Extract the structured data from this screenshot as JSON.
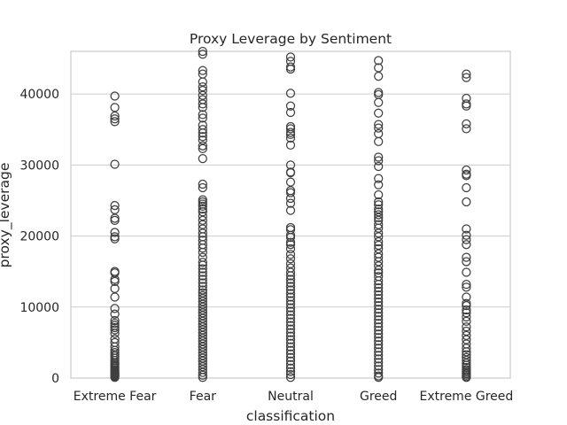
{
  "chart_data": {
    "type": "scatter",
    "subtype": "boxplot-outliers",
    "title": "Proxy Leverage by Sentiment",
    "xlabel": "classification",
    "ylabel": "proxy_leverage",
    "categories": [
      "Extreme Fear",
      "Fear",
      "Neutral",
      "Greed",
      "Extreme Greed"
    ],
    "ylim": [
      0,
      46000
    ],
    "yticks": [
      0,
      10000,
      20000,
      30000,
      40000
    ],
    "ytick_labels": [
      "0",
      "10000",
      "20000",
      "30000",
      "40000"
    ],
    "grid": "horizontal",
    "style": {
      "background": "#ffffff",
      "grid_color": "#cccccc",
      "marker_edge": "#3f3f3f",
      "spine_color": "#cccccc"
    },
    "series": [
      {
        "category": "Extreme Fear",
        "values": [
          39700,
          38100,
          36900,
          36500,
          36100,
          30100,
          24300,
          23700,
          22500,
          22200,
          20500,
          19900,
          19600,
          15000,
          14800,
          13900,
          13600,
          12600,
          11400,
          9800,
          9000,
          8100,
          7700,
          7400,
          7100,
          6800,
          6300,
          5500,
          5000,
          4400,
          3900,
          3600,
          3300,
          3100,
          2800,
          2500,
          2200,
          2000,
          1800,
          1600,
          1400,
          1200,
          1050,
          900,
          800,
          700,
          600,
          500,
          400,
          300,
          200,
          100
        ]
      },
      {
        "category": "Fear",
        "values": [
          46000,
          45600,
          43300,
          42800,
          41700,
          41000,
          40500,
          39800,
          39200,
          38600,
          38100,
          37100,
          36600,
          35600,
          35000,
          34500,
          34000,
          33500,
          32700,
          32300,
          30900,
          27300,
          26800,
          25100,
          24800,
          24500,
          24200,
          23800,
          23400,
          22800,
          22200,
          21600,
          21000,
          20400,
          19900,
          19400,
          18800,
          18300,
          17700,
          17000,
          16300,
          15900,
          15400,
          14900,
          14400,
          13900,
          13400,
          12900,
          12400,
          12000,
          11600,
          11200,
          10800,
          10400,
          10000,
          9600,
          9200,
          8800,
          8400,
          8000,
          7600,
          7200,
          6800,
          6400,
          6000,
          5600,
          5200,
          4800,
          4400,
          4000,
          3600,
          3200,
          2800,
          2400,
          2000,
          1600,
          1200,
          800,
          400,
          100
        ]
      },
      {
        "category": "Neutral",
        "values": [
          45200,
          44600,
          43800,
          43500,
          40100,
          38300,
          37400,
          35400,
          35100,
          34600,
          34300,
          33800,
          32800,
          30000,
          29000,
          28900,
          27600,
          26400,
          26100,
          25300,
          24600,
          23600,
          21200,
          20900,
          20100,
          19800,
          19100,
          18800,
          18200,
          17400,
          16800,
          16100,
          15500,
          14900,
          14400,
          13900,
          13400,
          12900,
          12400,
          11900,
          11400,
          10900,
          10400,
          9900,
          9400,
          8900,
          8400,
          7900,
          7400,
          6900,
          6400,
          5900,
          5400,
          4900,
          4400,
          3900,
          3400,
          2900,
          2400,
          1900,
          1400,
          900,
          500,
          100
        ]
      },
      {
        "category": "Greed",
        "values": [
          44700,
          43700,
          42500,
          40200,
          39900,
          38800,
          37300,
          35700,
          35200,
          34400,
          33300,
          31100,
          30600,
          29800,
          28100,
          27200,
          25800,
          24800,
          24400,
          23800,
          23400,
          23000,
          22600,
          22200,
          21600,
          21100,
          20400,
          19900,
          19200,
          18700,
          18200,
          17500,
          17000,
          16400,
          15800,
          15200,
          14800,
          14300,
          13700,
          13200,
          12700,
          12200,
          11700,
          11200,
          10700,
          10200,
          9700,
          9200,
          8700,
          8200,
          7700,
          7200,
          6700,
          6200,
          5700,
          5200,
          4700,
          4200,
          3700,
          3200,
          2700,
          2200,
          1700,
          1200,
          700,
          300,
          100
        ]
      },
      {
        "category": "Extreme Greed",
        "values": [
          42800,
          42300,
          39400,
          38600,
          38300,
          35800,
          35100,
          29300,
          28700,
          28500,
          26800,
          24800,
          21000,
          20100,
          19500,
          18800,
          17000,
          16400,
          14900,
          13200,
          12800,
          11400,
          10500,
          10200,
          9600,
          9200,
          8600,
          8000,
          7200,
          6600,
          6000,
          5400,
          4800,
          4200,
          3700,
          3300,
          2900,
          2500,
          2100,
          1800,
          1500,
          1200,
          1000,
          800,
          600,
          400,
          200,
          100
        ]
      }
    ]
  }
}
